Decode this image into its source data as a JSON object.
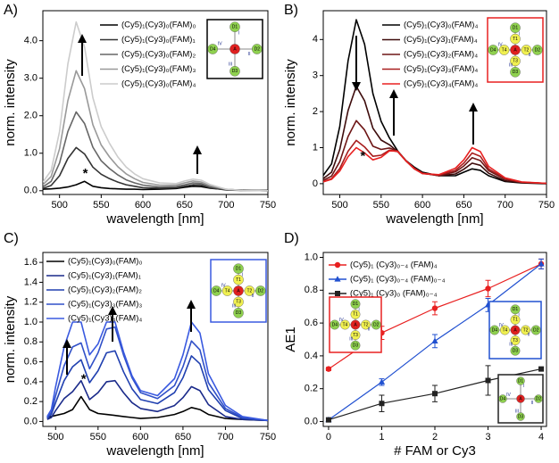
{
  "chart_data": [
    {
      "type": "line",
      "label": "A)",
      "x_label": "wavelength [nm]",
      "y_label": "norm. intensity",
      "xlim": [
        480,
        750
      ],
      "xticks": [
        500,
        550,
        600,
        650,
        700,
        750
      ],
      "ylim": [
        -0.1,
        4.8
      ],
      "yticks": [
        {
          "value": 0,
          "label": "0.0"
        },
        {
          "value": 1,
          "label": "1.0"
        },
        {
          "value": 2,
          "label": "2.0"
        },
        {
          "value": 3,
          "label": "3.0"
        },
        {
          "value": 4,
          "label": "4.0"
        }
      ],
      "x": [
        480,
        490,
        500,
        510,
        520,
        530,
        540,
        550,
        560,
        570,
        580,
        590,
        600,
        620,
        640,
        650,
        660,
        670,
        680,
        700,
        720,
        750
      ],
      "series": [
        {
          "name": "(Cy5)₁(Cy3)₀(FAM)₀",
          "color": "#000000",
          "values": [
            0.04,
            0.05,
            0.07,
            0.1,
            0.16,
            0.25,
            0.12,
            0.08,
            0.06,
            0.05,
            0.04,
            0.04,
            0.03,
            0.04,
            0.06,
            0.09,
            0.12,
            0.11,
            0.07,
            0.03,
            0.02,
            0.01
          ]
        },
        {
          "name": "(Cy5)₁(Cy3)₀(FAM)₁",
          "color": "#333333",
          "values": [
            0.06,
            0.14,
            0.4,
            0.86,
            1.15,
            0.98,
            0.63,
            0.44,
            0.32,
            0.23,
            0.16,
            0.12,
            0.08,
            0.07,
            0.08,
            0.12,
            0.16,
            0.15,
            0.08,
            0.02,
            0.01,
            0
          ]
        },
        {
          "name": "(Cy5)₁(Cy3)₀(FAM)₂",
          "color": "#666666",
          "values": [
            0.1,
            0.25,
            0.74,
            1.58,
            2.1,
            1.79,
            1.16,
            0.8,
            0.59,
            0.42,
            0.29,
            0.21,
            0.15,
            0.1,
            0.11,
            0.16,
            0.21,
            0.19,
            0.11,
            0.03,
            0.01,
            0
          ]
        },
        {
          "name": "(Cy5)₁(Cy3)₀(FAM)₃",
          "color": "#999999",
          "values": [
            0.16,
            0.38,
            1.12,
            2.4,
            3.2,
            2.72,
            1.76,
            1.22,
            0.9,
            0.64,
            0.45,
            0.32,
            0.22,
            0.15,
            0.15,
            0.21,
            0.26,
            0.23,
            0.14,
            0.04,
            0.01,
            0
          ]
        },
        {
          "name": "(Cy5)₁(Cy3)₀(FAM)₄",
          "color": "#cccccc",
          "values": [
            0.23,
            0.54,
            1.58,
            3.38,
            4.5,
            3.83,
            2.48,
            1.71,
            1.26,
            0.9,
            0.63,
            0.45,
            0.32,
            0.21,
            0.19,
            0.26,
            0.31,
            0.28,
            0.17,
            0.04,
            0.01,
            0
          ]
        }
      ],
      "annotations": [
        {
          "text": "*",
          "x": 531,
          "y": 0.45
        }
      ],
      "insets": [
        {
          "color": "#000000",
          "labels": [
            "D1",
            "D2",
            "D3",
            "D4",
            "A",
            "I",
            "II",
            "III",
            "IV"
          ]
        }
      ]
    },
    {
      "type": "line",
      "label": "B)",
      "x_label": "wavelength [nm]",
      "y_label": "norm. intensity",
      "xlim": [
        480,
        750
      ],
      "xticks": [
        500,
        550,
        600,
        650,
        700,
        750
      ],
      "ylim": [
        -0.3,
        4.8
      ],
      "yticks": [
        0,
        1,
        2,
        3,
        4
      ],
      "x": [
        480,
        490,
        500,
        510,
        520,
        530,
        540,
        550,
        560,
        570,
        580,
        590,
        600,
        620,
        640,
        650,
        660,
        670,
        680,
        700,
        720,
        750
      ],
      "series": [
        {
          "name": "(Cy5)₁(Cy3)₀(FAM)₄",
          "color": "#000000",
          "values": [
            0.23,
            0.55,
            1.59,
            3.41,
            4.55,
            3.87,
            2.5,
            1.73,
            1.27,
            0.91,
            0.64,
            0.46,
            0.32,
            0.22,
            0.22,
            0.32,
            0.41,
            0.37,
            0.22,
            0.06,
            0.02,
            0
          ]
        },
        {
          "name": "(Cy5)₁(Cy3)₁(FAM)₄",
          "color": "#3d0b0b",
          "values": [
            0.14,
            0.32,
            0.95,
            2.03,
            2.7,
            2.3,
            1.54,
            1.21,
            1.08,
            0.89,
            0.63,
            0.43,
            0.3,
            0.22,
            0.27,
            0.4,
            0.57,
            0.51,
            0.29,
            0.08,
            0.03,
            0.01
          ]
        },
        {
          "name": "(Cy5)₁(Cy3)₂(FAM)₄",
          "color": "#6e1616",
          "values": [
            0.09,
            0.21,
            0.61,
            1.31,
            1.75,
            1.49,
            1.04,
            0.95,
            0.99,
            0.9,
            0.64,
            0.43,
            0.29,
            0.22,
            0.33,
            0.49,
            0.72,
            0.64,
            0.36,
            0.12,
            0.04,
            0.01
          ]
        },
        {
          "name": "(Cy5)₁(Cy3)₃(FAM)₄",
          "color": "#a81e1e",
          "values": [
            0.06,
            0.14,
            0.42,
            0.9,
            1.2,
            1.02,
            0.76,
            0.79,
            0.93,
            0.89,
            0.63,
            0.41,
            0.28,
            0.24,
            0.37,
            0.57,
            0.85,
            0.76,
            0.41,
            0.14,
            0.04,
            0.01
          ]
        },
        {
          "name": "(Cy5)₁(Cy3)₄(FAM)₄",
          "color": "#e82020",
          "values": [
            0.05,
            0.12,
            0.35,
            0.75,
            1.0,
            0.85,
            0.66,
            0.73,
            0.91,
            0.9,
            0.63,
            0.42,
            0.28,
            0.25,
            0.43,
            0.66,
            1.0,
            0.89,
            0.48,
            0.16,
            0.05,
            0.01
          ]
        }
      ],
      "annotations": [
        {
          "text": "*",
          "x": 528,
          "y": 0.75
        }
      ],
      "insets": [
        {
          "color": "#e82020",
          "labels": [
            "D1",
            "D2",
            "D3",
            "D4",
            "T1",
            "T2",
            "T3",
            "T4",
            "A",
            "I",
            "II",
            "III",
            "IV"
          ]
        }
      ]
    },
    {
      "type": "line",
      "label": "C)",
      "x_label": "wavelength [nm]",
      "y_label": "norm. intensity",
      "xlim": [
        485,
        750
      ],
      "xticks": [
        500,
        550,
        600,
        650,
        700,
        750
      ],
      "ylim": [
        -0.05,
        1.7
      ],
      "yticks": [
        {
          "value": 0,
          "label": "0.0"
        },
        {
          "value": 0.2,
          "label": "0.2"
        },
        {
          "value": 0.4,
          "label": "0.4"
        },
        {
          "value": 0.6,
          "label": "0.6"
        },
        {
          "value": 0.8,
          "label": "0.8"
        },
        {
          "value": 1,
          "label": "1.0"
        },
        {
          "value": 1.2,
          "label": "1.2"
        },
        {
          "value": 1.4,
          "label": "1.4"
        },
        {
          "value": 1.6,
          "label": "1.6"
        }
      ],
      "x": [
        490,
        495,
        500,
        510,
        520,
        530,
        540,
        550,
        560,
        570,
        580,
        590,
        600,
        620,
        640,
        650,
        660,
        670,
        680,
        700,
        720,
        750
      ],
      "series": [
        {
          "name": "(Cy5)₁(Cy3)₀(FAM)₀",
          "color": "#000000",
          "values": [
            0.04,
            0.05,
            0.06,
            0.08,
            0.12,
            0.25,
            0.12,
            0.08,
            0.07,
            0.06,
            0.05,
            0.04,
            0.03,
            0.04,
            0.07,
            0.1,
            0.14,
            0.12,
            0.07,
            0.03,
            0.02,
            0.01
          ]
        },
        {
          "name": "(Cy5)₁(Cy3)₁(FAM)₁",
          "color": "#1a2a8a",
          "values": [
            0.02,
            0.04,
            0.11,
            0.23,
            0.3,
            0.41,
            0.22,
            0.29,
            0.4,
            0.41,
            0.29,
            0.19,
            0.13,
            0.1,
            0.16,
            0.24,
            0.35,
            0.31,
            0.17,
            0.05,
            0.02,
            0.01
          ]
        },
        {
          "name": "(Cy5)₁(Cy3)₂(FAM)₂",
          "color": "#2040b0",
          "values": [
            0.03,
            0.07,
            0.19,
            0.41,
            0.55,
            0.62,
            0.39,
            0.51,
            0.69,
            0.71,
            0.5,
            0.33,
            0.22,
            0.18,
            0.29,
            0.44,
            0.66,
            0.58,
            0.32,
            0.11,
            0.03,
            0.01
          ]
        },
        {
          "name": "(Cy5)₁(Cy3)₃(FAM)₃",
          "color": "#3050c8",
          "values": [
            0.04,
            0.09,
            0.26,
            0.56,
            0.75,
            0.79,
            0.53,
            0.69,
            0.93,
            0.95,
            0.67,
            0.44,
            0.29,
            0.23,
            0.36,
            0.55,
            0.81,
            0.72,
            0.39,
            0.13,
            0.04,
            0.01
          ]
        },
        {
          "name": "(Cy5)₁(Cy3)₄(FAM)₄",
          "color": "#3a5ae0",
          "values": [
            0.05,
            0.12,
            0.35,
            0.75,
            1.0,
            1.0,
            0.67,
            0.78,
            1.0,
            1.0,
            0.7,
            0.46,
            0.31,
            0.26,
            0.43,
            0.67,
            1.0,
            0.89,
            0.48,
            0.16,
            0.05,
            0.01
          ]
        }
      ],
      "annotations": [
        {
          "text": "*",
          "x": 533,
          "y": 0.42
        }
      ],
      "insets": [
        {
          "color": "#3a5ae0",
          "labels": [
            "D1",
            "D2",
            "D3",
            "D4",
            "T1",
            "T2",
            "T3",
            "T4",
            "A",
            "I",
            "II",
            "III",
            "IV"
          ]
        }
      ]
    },
    {
      "type": "line",
      "label": "D)",
      "x_label": "# FAM or Cy3",
      "y_label": "AE1",
      "xlim": [
        -0.1,
        4.1
      ],
      "xticks": [
        0,
        1,
        2,
        3,
        4
      ],
      "ylim": [
        -0.03,
        1.03
      ],
      "yticks": [
        {
          "value": 0,
          "label": "0.0"
        },
        {
          "value": 0.2,
          "label": "0.2"
        },
        {
          "value": 0.4,
          "label": "0.4"
        },
        {
          "value": 0.6,
          "label": "0.6"
        },
        {
          "value": 0.8,
          "label": "0.8"
        },
        {
          "value": 1,
          "label": "1.0"
        }
      ],
      "x": [
        0,
        1,
        2,
        3,
        4
      ],
      "series": [
        {
          "name": "(Cy5)₁ (Cy3)₀₋₄ (FAM)₄",
          "color": "#e82020",
          "marker": "circle",
          "values": [
            0.32,
            0.54,
            0.69,
            0.81,
            0.96
          ],
          "errors": [
            0.01,
            0.04,
            0.04,
            0.05,
            0.03
          ]
        },
        {
          "name": "(Cy5)₁ (Cy3)₀₋₄ (FAM)₀₋₄",
          "color": "#2050d0",
          "marker": "triangle",
          "values": [
            0.01,
            0.24,
            0.49,
            0.71,
            0.96
          ],
          "errors": [
            0.01,
            0.02,
            0.04,
            0.04,
            0.03
          ]
        },
        {
          "name": "(Cy5)₁ (Cy3)₀ (FAM)₀₋₄",
          "color": "#222222",
          "marker": "square",
          "values": [
            0.01,
            0.11,
            0.17,
            0.25,
            0.32
          ],
          "errors": [
            0.01,
            0.05,
            0.05,
            0.09,
            0.01
          ]
        }
      ],
      "insets": [
        {
          "color": "#e82020",
          "labels": [
            "D1",
            "D2",
            "D3",
            "D4",
            "T1",
            "T2",
            "T3",
            "T4",
            "A",
            "I",
            "II",
            "III",
            "IV"
          ]
        },
        {
          "color": "#2050d0",
          "labels": [
            "D1",
            "D2",
            "D3",
            "D4",
            "T1",
            "T2",
            "T3",
            "T4",
            "A",
            "I",
            "II",
            "III",
            "IV"
          ]
        },
        {
          "color": "#222222",
          "labels": [
            "D1",
            "D2",
            "D3",
            "D4",
            "A",
            "I",
            "II",
            "III",
            "IV"
          ]
        }
      ]
    }
  ]
}
